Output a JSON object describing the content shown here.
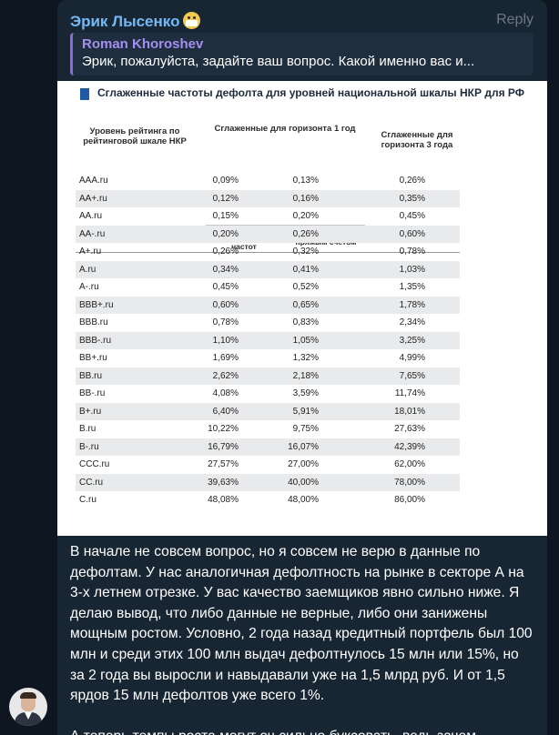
{
  "message": {
    "sender": "Эрик Лысенко",
    "reply_label": "Reply",
    "quote": {
      "name": "Roman Khoroshev",
      "text": "Эрик, пожалуйста, задайте ваш вопрос. Какой именно вас и..."
    },
    "body": "В начале не совсем вопрос, но я совсем не верю в данные по дефолтам. У нас аналогичная дефолтность на рынке в секторе А на 3-х летнем отрезке. У вас качество заемщиков явно сильно ниже. Я делаю вывод, что либо данные не верные, либо они занижены мощным ростом. Условно, 2 года назад кредитный портфель был 100 млн и среди этих 100 млн выдач дефолтнулось 15 млн или 15%, но за 2 года вы выросли и навыдавали уже на 1,5 млрд руб. И от 1,5 ярдов 15 млн дефолтов уже всего 1%.\n\nА теперь темпы роста могут оч сильно буксовать, ведь зачем"
  },
  "image": {
    "title": "Сглаженные частоты дефолта для уровней национальной шкалы НКР для РФ",
    "col_rating": "Уровень рейтинга по рейтинговой шкале НКР",
    "col_h1": "Сглаженные для горизонта 1 год",
    "col_h1_a": "на основе 3-летних частот",
    "col_h1_b": "прямым счётом",
    "col_h3": "Сглаженные для горизонта 3 года",
    "rows": [
      {
        "rating": "AAA.ru",
        "a": "0,09%",
        "b": "0,13%",
        "c": "0,26%"
      },
      {
        "rating": "AA+.ru",
        "a": "0,12%",
        "b": "0,16%",
        "c": "0,35%"
      },
      {
        "rating": "AA.ru",
        "a": "0,15%",
        "b": "0,20%",
        "c": "0,45%"
      },
      {
        "rating": "AA-.ru",
        "a": "0,20%",
        "b": "0,26%",
        "c": "0,60%"
      },
      {
        "rating": "A+.ru",
        "a": "0,26%",
        "b": "0,32%",
        "c": "0,78%"
      },
      {
        "rating": "A.ru",
        "a": "0,34%",
        "b": "0,41%",
        "c": "1,03%"
      },
      {
        "rating": "A-.ru",
        "a": "0,45%",
        "b": "0,52%",
        "c": "1,35%"
      },
      {
        "rating": "BBB+.ru",
        "a": "0,60%",
        "b": "0,65%",
        "c": "1,78%"
      },
      {
        "rating": "BBB.ru",
        "a": "0,78%",
        "b": "0,83%",
        "c": "2,34%"
      },
      {
        "rating": "BBB-.ru",
        "a": "1,10%",
        "b": "1,05%",
        "c": "3,25%"
      },
      {
        "rating": "BB+.ru",
        "a": "1,69%",
        "b": "1,32%",
        "c": "4,99%"
      },
      {
        "rating": "BB.ru",
        "a": "2,62%",
        "b": "2,18%",
        "c": "7,65%"
      },
      {
        "rating": "BB-.ru",
        "a": "4,08%",
        "b": "3,59%",
        "c": "11,74%"
      },
      {
        "rating": "B+.ru",
        "a": "6,40%",
        "b": "5,91%",
        "c": "18,01%"
      },
      {
        "rating": "B.ru",
        "a": "10,22%",
        "b": "9,75%",
        "c": "27,63%"
      },
      {
        "rating": "B-.ru",
        "a": "16,79%",
        "b": "16,07%",
        "c": "42,39%"
      },
      {
        "rating": "CCC.ru",
        "a": "27,57%",
        "b": "27,00%",
        "c": "62,00%"
      },
      {
        "rating": "CC.ru",
        "a": "39,63%",
        "b": "40,00%",
        "c": "78,00%"
      },
      {
        "rating": "C.ru",
        "a": "48,08%",
        "b": "48,00%",
        "c": "86,00%"
      }
    ]
  },
  "colors": {
    "background": "#0e1621",
    "bubble": "#182533",
    "sender": "#73b9f5",
    "quote_accent": "#8c6bd8"
  }
}
